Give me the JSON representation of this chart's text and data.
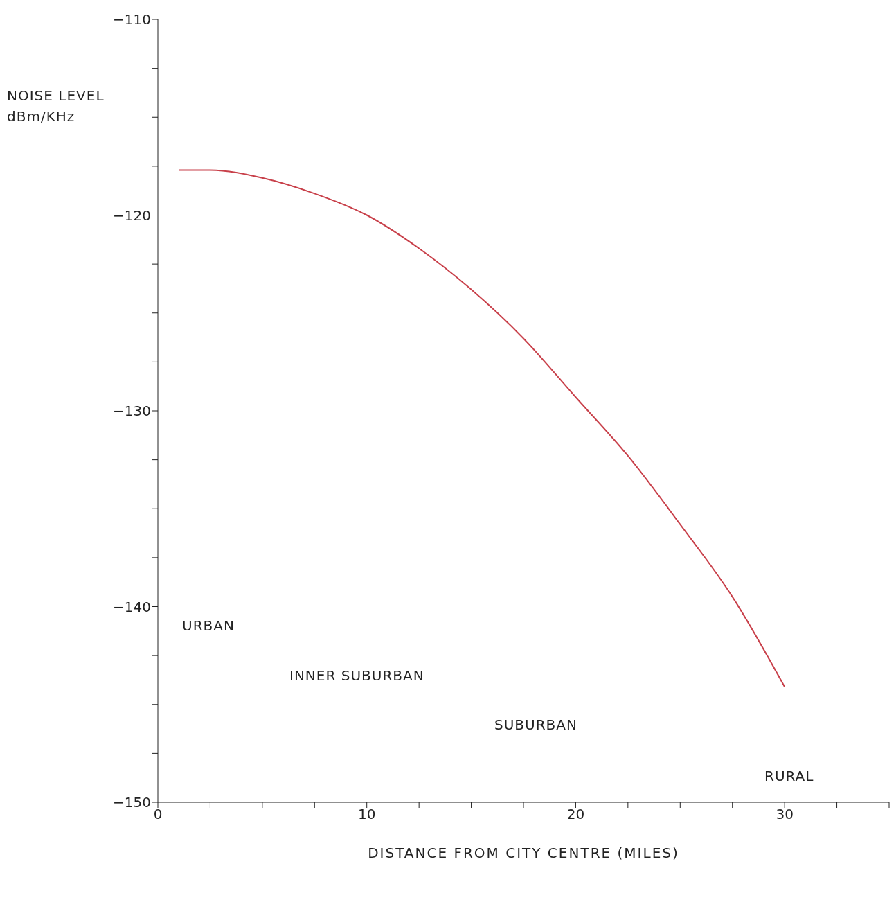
{
  "chart_data": {
    "type": "line",
    "xlabel": "DISTANCE FROM CITY CENTRE (MILES)",
    "ylabel": "NOISE LEVEL\ndBm/KHz",
    "x": [
      1,
      2.5,
      5,
      7.5,
      10,
      12.5,
      15,
      17.5,
      20,
      22.5,
      25,
      27.5,
      30
    ],
    "series": [
      {
        "color": "#c8404a",
        "values": [
          -117.7,
          -117.7,
          -118.1,
          -118.9,
          -120,
          -121.7,
          -123.8,
          -126.3,
          -129.3,
          -132.3,
          -135.8,
          -139.5,
          -144.1
        ]
      }
    ],
    "xlim": [
      0,
      35
    ],
    "xticks": [
      0,
      {
        "value": 2.5,
        "label": null
      },
      {
        "value": 5,
        "label": null
      },
      {
        "value": 7.5,
        "label": null
      },
      10,
      {
        "value": 12.5,
        "label": null
      },
      {
        "value": 15,
        "label": null
      },
      {
        "value": 17.5,
        "label": null
      },
      20,
      {
        "value": 22.5,
        "label": null
      },
      {
        "value": 25,
        "label": null
      },
      {
        "value": 27.5,
        "label": null
      },
      30,
      {
        "value": 32.5,
        "label": null
      },
      {
        "value": 35,
        "label": null
      }
    ],
    "ylim": [
      -150,
      -110
    ],
    "yticks": [
      -150,
      {
        "value": -147.5,
        "label": null
      },
      {
        "value": -145,
        "label": null
      },
      {
        "value": -142.5,
        "label": null
      },
      -140,
      {
        "value": -137.5,
        "label": null
      },
      {
        "value": -135,
        "label": null
      },
      {
        "value": -132.5,
        "label": null
      },
      -130,
      {
        "value": -127.5,
        "label": null
      },
      {
        "value": -125,
        "label": null
      },
      {
        "value": -122.5,
        "label": null
      },
      -120,
      {
        "value": -117.5,
        "label": null
      },
      {
        "value": -115,
        "label": null
      },
      {
        "value": -112.5,
        "label": null
      },
      -110
    ],
    "annotations": [
      "URBAN",
      "INNER SUBURBAN",
      "SUBURBAN",
      "RURAL"
    ],
    "marker": "none",
    "line_style": "solid"
  }
}
